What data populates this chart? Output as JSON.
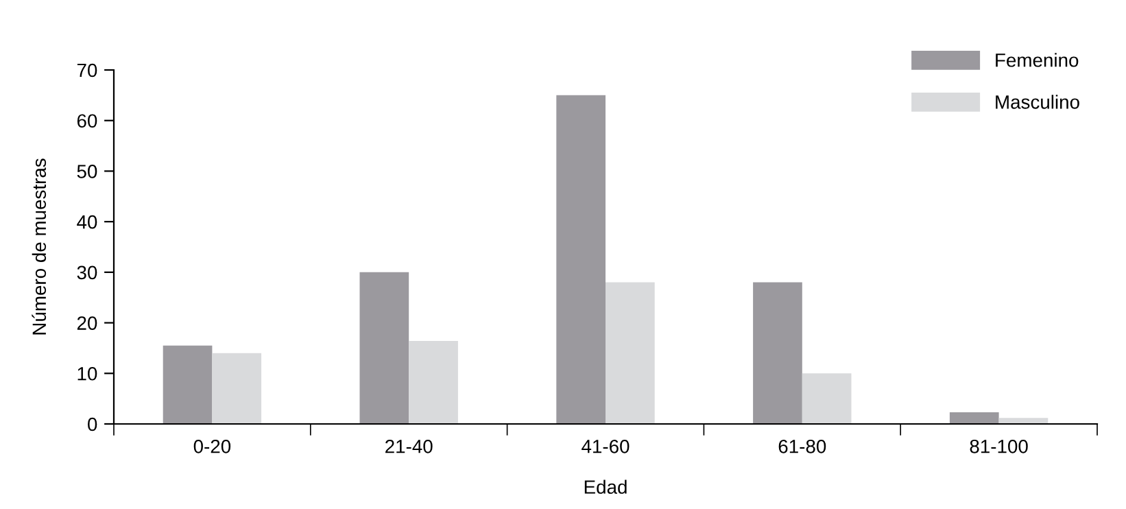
{
  "chart_data": {
    "type": "bar",
    "xlabel": "Edad",
    "ylabel": "Número de muestras",
    "categories": [
      "0-20",
      "21-40",
      "41-60",
      "61-80",
      "81-100"
    ],
    "series": [
      {
        "name": "Femenino",
        "color": "#9b999e",
        "values": [
          15.5,
          30,
          65,
          28,
          2.3
        ]
      },
      {
        "name": "Masculino",
        "color": "#d9dadc",
        "values": [
          14,
          16.4,
          28,
          10,
          1.2
        ]
      }
    ],
    "ylim": [
      0,
      70
    ],
    "yticks": [
      0,
      10,
      20,
      30,
      40,
      50,
      60,
      70
    ],
    "grid": false,
    "legend": "top right"
  }
}
